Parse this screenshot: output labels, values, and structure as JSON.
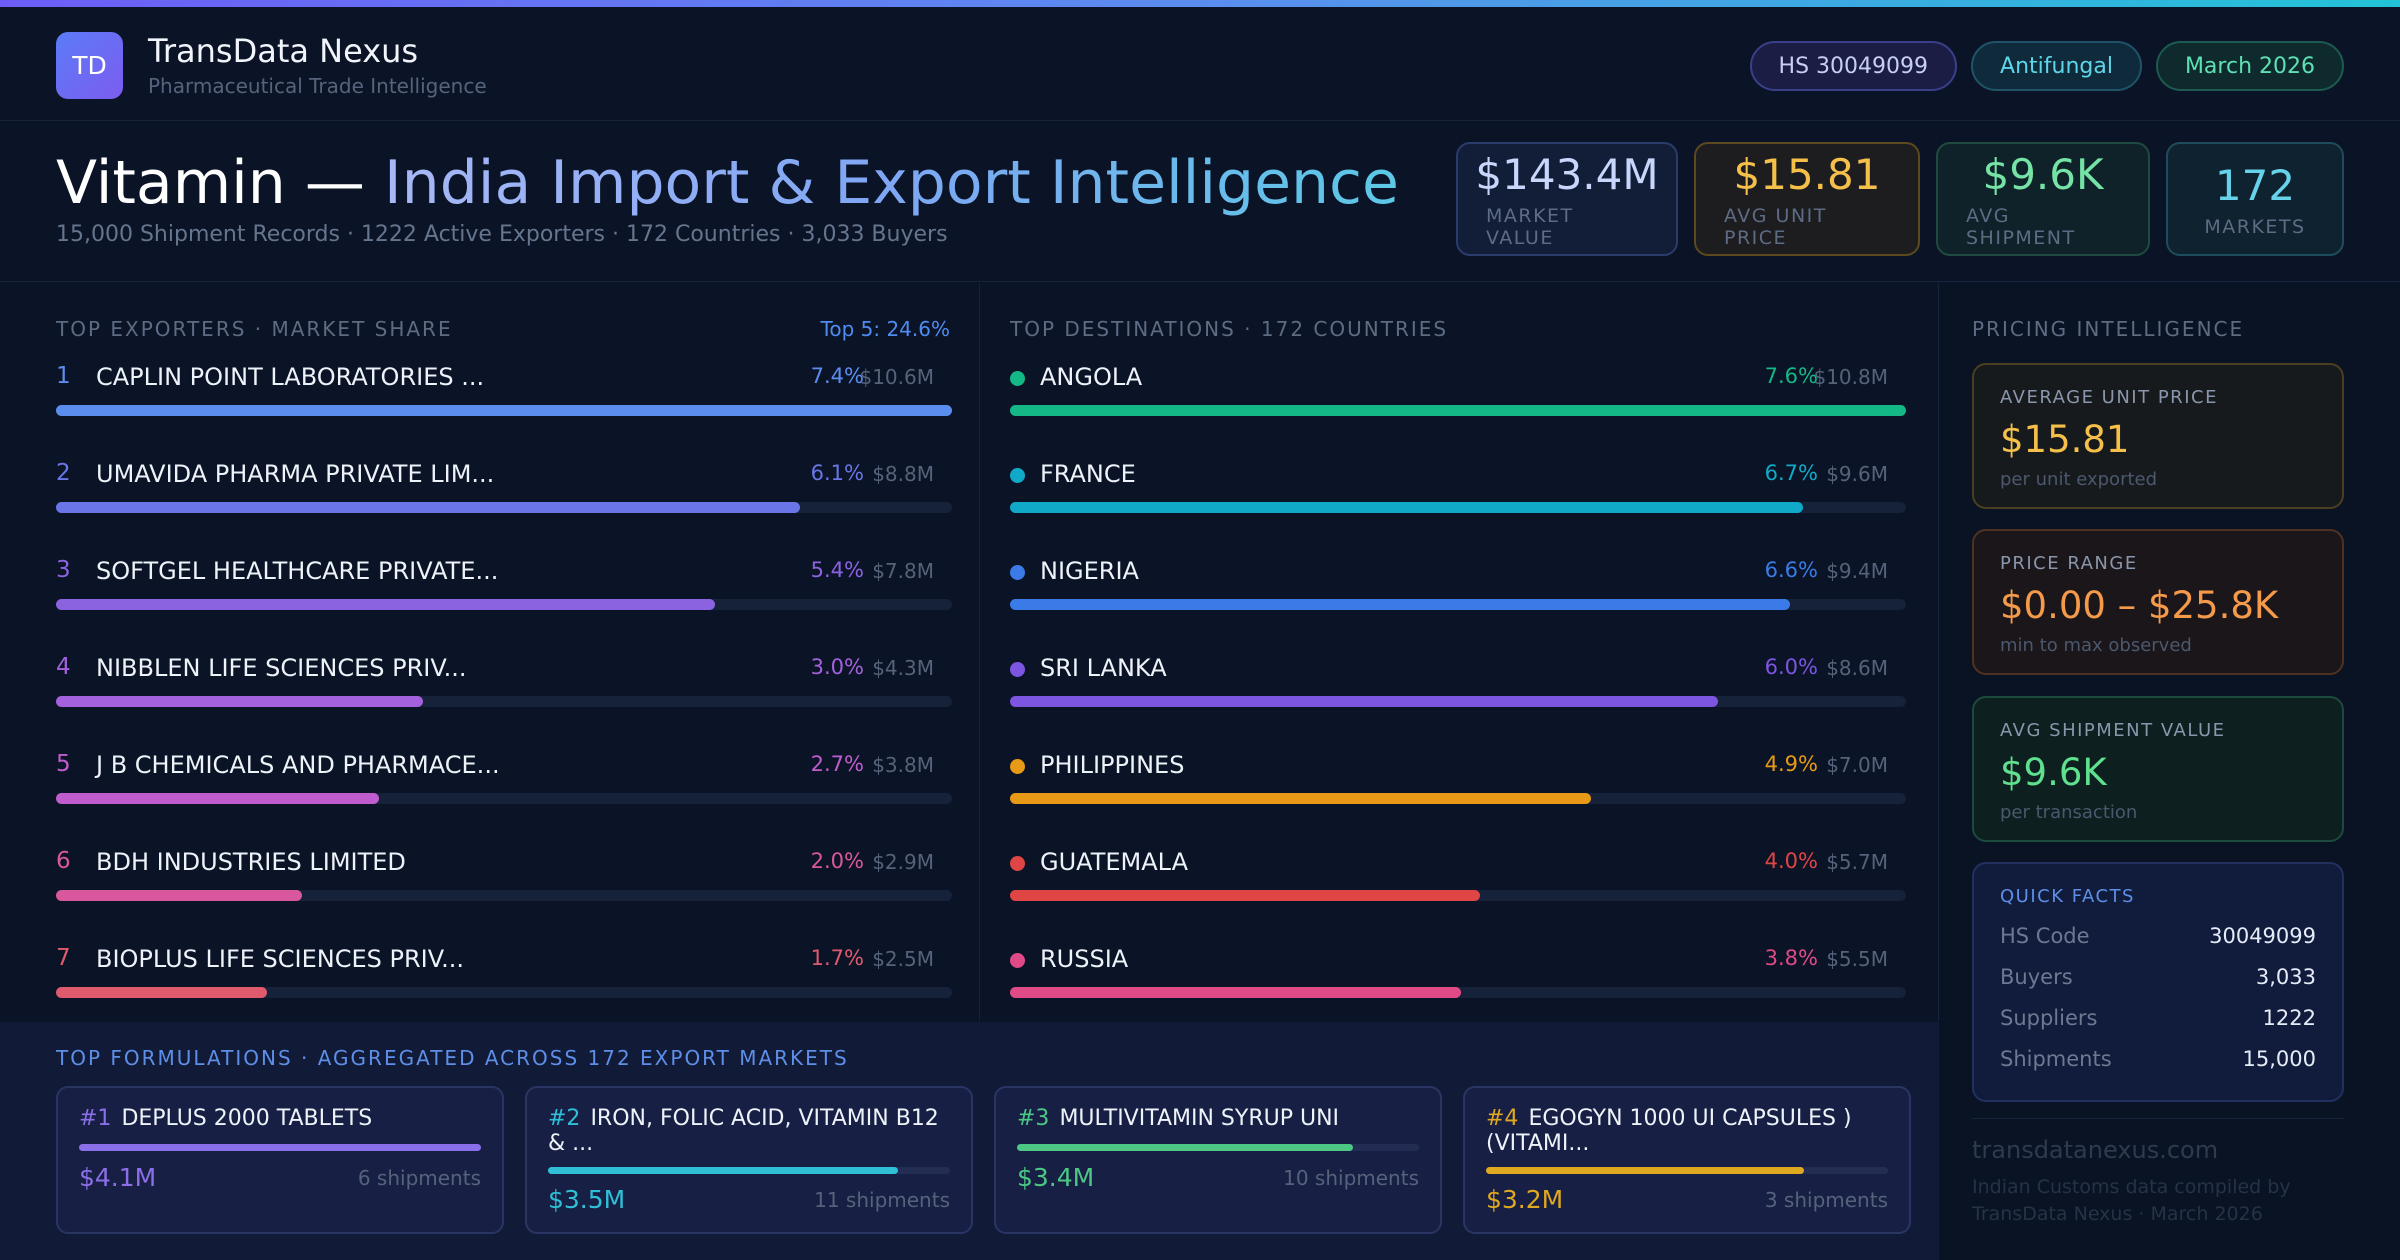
{
  "brand": {
    "logo": "TD",
    "name": "TransData Nexus",
    "subtitle": "Pharmaceutical Trade Intelligence"
  },
  "pills": [
    "HS 30049099",
    "Antifungal",
    "March 2026"
  ],
  "title": {
    "part1": "Vitamin —",
    "part2": " India Import & Export Intelligence",
    "subtitle": "15,000 Shipment Records · 1222 Active Exporters · 172 Countries · 3,033 Buyers"
  },
  "stats": [
    {
      "value": "$143.4M",
      "label": "MARKET VALUE"
    },
    {
      "value": "$15.81",
      "label": "AVG UNIT PRICE"
    },
    {
      "value": "$9.6K",
      "label": "AVG SHIPMENT"
    },
    {
      "value": "172",
      "label": "MARKETS"
    }
  ],
  "exporters": {
    "title": "TOP EXPORTERS · MARKET SHARE",
    "top5": "Top 5: 24.6%",
    "items": [
      {
        "rank": "1",
        "name": "CAPLIN POINT LABORATORIES ...",
        "pct": "7.4%",
        "value": "$10.6M",
        "share": 1.0,
        "color": "#5b8def"
      },
      {
        "rank": "2",
        "name": "UMAVIDA PHARMA PRIVATE LIM...",
        "pct": "6.1%",
        "value": "$8.8M",
        "share": 0.83,
        "color": "#6a76e8"
      },
      {
        "rank": "3",
        "name": "SOFTGEL HEALTHCARE PRIVATE...",
        "pct": "5.4%",
        "value": "$7.8M",
        "share": 0.735,
        "color": "#8b63e0"
      },
      {
        "rank": "4",
        "name": "NIBBLEN LIFE SCIENCES PRIV...",
        "pct": "3.0%",
        "value": "$4.3M",
        "share": 0.41,
        "color": "#a461de"
      },
      {
        "rank": "5",
        "name": "J B CHEMICALS AND PHARMACE...",
        "pct": "2.7%",
        "value": "$3.8M",
        "share": 0.36,
        "color": "#c05ccd"
      },
      {
        "rank": "6",
        "name": "BDH INDUSTRIES LIMITED",
        "pct": "2.0%",
        "value": "$2.9M",
        "share": 0.275,
        "color": "#d9589d"
      },
      {
        "rank": "7",
        "name": "BIOPLUS LIFE SCIENCES PRIV...",
        "pct": "1.7%",
        "value": "$2.5M",
        "share": 0.235,
        "color": "#e05a6e"
      }
    ]
  },
  "destinations": {
    "title": "TOP DESTINATIONS · 172 COUNTRIES",
    "items": [
      {
        "name": "ANGOLA",
        "pct": "7.6%",
        "value": "$10.8M",
        "share": 1.0,
        "color": "#14b886"
      },
      {
        "name": "FRANCE",
        "pct": "6.7%",
        "value": "$9.6M",
        "share": 0.885,
        "color": "#10aac8"
      },
      {
        "name": "NIGERIA",
        "pct": "6.6%",
        "value": "$9.4M",
        "share": 0.87,
        "color": "#3b7be8"
      },
      {
        "name": "SRI LANKA",
        "pct": "6.0%",
        "value": "$8.6M",
        "share": 0.79,
        "color": "#7c55e0"
      },
      {
        "name": "PHILIPPINES",
        "pct": "4.9%",
        "value": "$7.0M",
        "share": 0.648,
        "color": "#e89a16"
      },
      {
        "name": "GUATEMALA",
        "pct": "4.0%",
        "value": "$5.7M",
        "share": 0.525,
        "color": "#e04545"
      },
      {
        "name": "RUSSIA",
        "pct": "3.8%",
        "value": "$5.5M",
        "share": 0.503,
        "color": "#e04a86"
      }
    ]
  },
  "formulations": {
    "title": "TOP FORMULATIONS · AGGREGATED ACROSS 172 EXPORT MARKETS",
    "items": [
      {
        "num": "#1",
        "name": "DEPLUS 2000 TABLETS",
        "value": "$4.1M",
        "shipments": "6 shipments",
        "share": 1.0,
        "color": "#8b6fe8"
      },
      {
        "num": "#2",
        "name": "IRON, FOLIC ACID, VITAMIN B12 & ...",
        "value": "$3.5M",
        "shipments": "11 shipments",
        "share": 0.87,
        "color": "#2fc0d8"
      },
      {
        "num": "#3",
        "name": "MULTIVITAMIN SYRUP UNI",
        "value": "$3.4M",
        "shipments": "10 shipments",
        "share": 0.835,
        "color": "#4cc884"
      },
      {
        "num": "#4",
        "name": "EGOGYN 1000 UI CAPSULES ) (VITAMI...",
        "value": "$3.2M",
        "shipments": "3 shipments",
        "share": 0.79,
        "color": "#e0a820"
      }
    ]
  },
  "pricing": {
    "title": "PRICING INTELLIGENCE",
    "avg_unit": {
      "label": "AVERAGE UNIT PRICE",
      "value": "$15.81",
      "note": "per unit exported"
    },
    "range": {
      "label": "PRICE RANGE",
      "value": "$0.00 – $25.8K",
      "note": "min to max observed"
    },
    "avg_ship": {
      "label": "AVG SHIPMENT VALUE",
      "value": "$9.6K",
      "note": "per transaction"
    },
    "quick_facts": {
      "label": "QUICK FACTS",
      "rows": [
        {
          "k": "HS Code",
          "v": "30049099"
        },
        {
          "k": "Buyers",
          "v": "3,033"
        },
        {
          "k": "Suppliers",
          "v": "1222"
        },
        {
          "k": "Shipments",
          "v": "15,000"
        }
      ]
    },
    "site": "transdatanexus.com",
    "credit": "Indian Customs data compiled by TransData Nexus · March 2026"
  }
}
